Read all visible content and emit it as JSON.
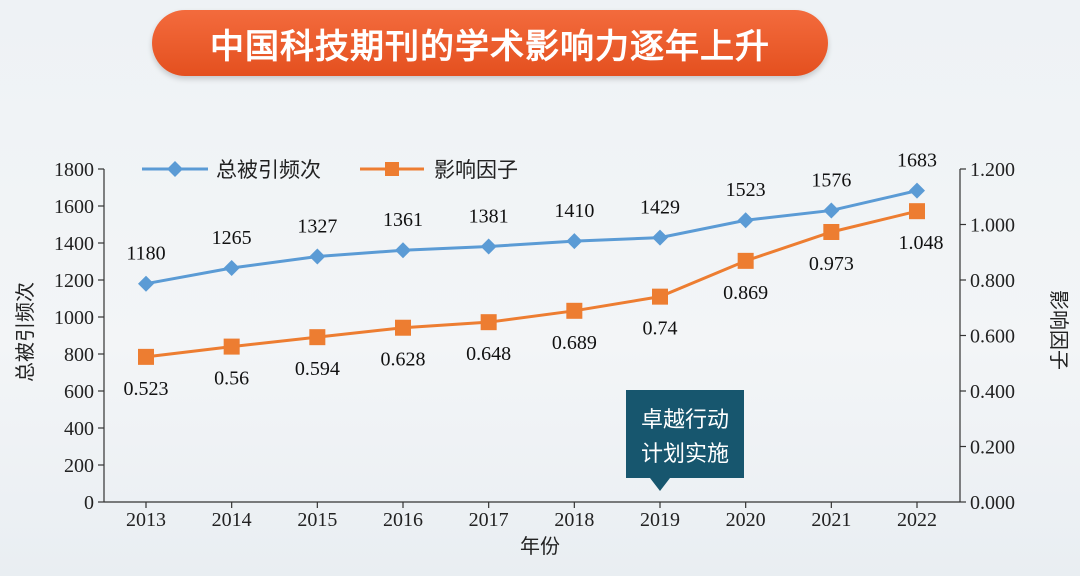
{
  "banner": {
    "title": "中国科技期刊的学术影响力逐年上升"
  },
  "chart_data": {
    "type": "line",
    "categories": [
      "2013",
      "2014",
      "2015",
      "2016",
      "2017",
      "2018",
      "2019",
      "2020",
      "2021",
      "2022"
    ],
    "series": [
      {
        "name": "总被引频次",
        "axis": "left",
        "color": "#5b9bd5",
        "marker": "diamond",
        "values": [
          1180,
          1265,
          1327,
          1361,
          1381,
          1410,
          1429,
          1523,
          1576,
          1683
        ],
        "labels": [
          "1180",
          "1265",
          "1327",
          "1361",
          "1381",
          "1410",
          "1429",
          "1523",
          "1576",
          "1683"
        ]
      },
      {
        "name": "影响因子",
        "axis": "right",
        "color": "#ed7d31",
        "marker": "square",
        "values": [
          0.523,
          0.56,
          0.594,
          0.628,
          0.648,
          0.689,
          0.74,
          0.869,
          0.973,
          1.048
        ],
        "labels": [
          "0.523",
          "0.56",
          "0.594",
          "0.628",
          "0.648",
          "0.689",
          "0.74",
          "0.869",
          "0.973",
          "1.048"
        ]
      }
    ],
    "xlabel": "年份",
    "ylabel_left": "总被引频次",
    "ylabel_right": "影响因子",
    "ylim_left": [
      0,
      1800
    ],
    "ylim_right": [
      0,
      1.2
    ],
    "yticks_left": [
      "0",
      "200",
      "400",
      "600",
      "800",
      "1000",
      "1200",
      "1400",
      "1600",
      "1800"
    ],
    "yticks_right": [
      "0.000",
      "0.200",
      "0.400",
      "0.600",
      "0.800",
      "1.000",
      "1.200"
    ],
    "legend_position": "top-left",
    "annotation": {
      "text_line1": "卓越行动",
      "text_line2": "计划实施",
      "category": "2019",
      "color": "#17566e"
    }
  }
}
